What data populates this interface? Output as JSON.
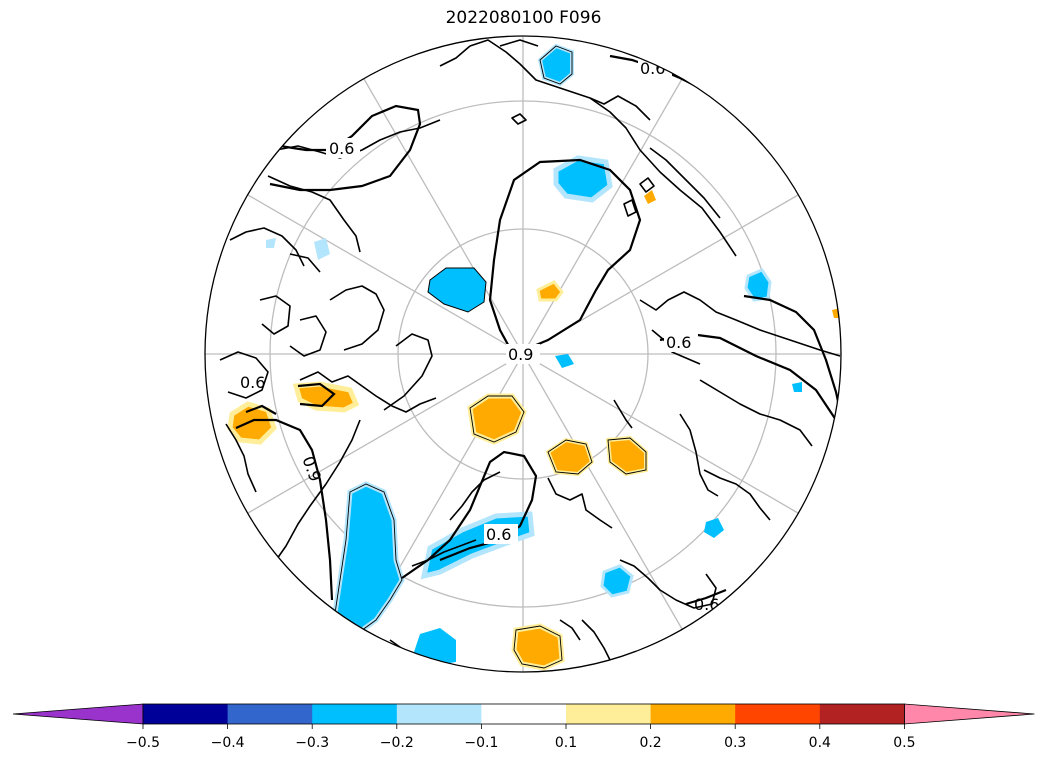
{
  "title": "2022080100 F096",
  "map": {
    "projection": "north-polar-stereographic",
    "land_outline_color": "#000000",
    "graticule_color": "#bdbdbd",
    "contour_color": "#000000",
    "contour_labels": [
      "0.6",
      "0.6",
      "0.6",
      "0.6",
      "0.9",
      "0.9",
      "0.6",
      "0.6"
    ]
  },
  "colorbar": {
    "colors": [
      "#9933cc",
      "#000099",
      "#3366cc",
      "#00bfff",
      "#b3e5fc",
      "#ffffff",
      "#ffee99",
      "#ffaa00",
      "#ff4500",
      "#b22222",
      "#ff88aa"
    ],
    "ticks": [
      "−0.5",
      "−0.4",
      "−0.3",
      "−0.2",
      "−0.1",
      "0.1",
      "0.2",
      "0.3",
      "0.4",
      "0.5"
    ],
    "extend": "both"
  }
}
